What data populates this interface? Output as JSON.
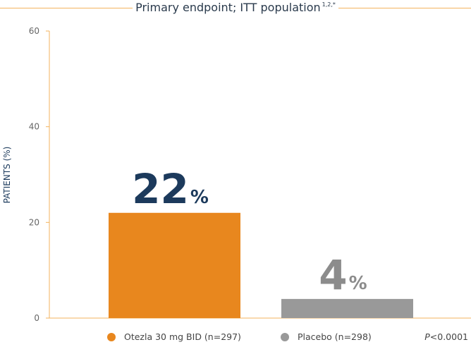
{
  "title": "Primary endpoint; ITT population",
  "title_superscript": "1,2,*",
  "pvalue_italic": "P",
  "pvalue_rest": "<0.0001",
  "colors": {
    "axis": "#f3b35e",
    "otezla": "#e8871e",
    "placebo": "#999999",
    "label_dark": "#1c3a5c",
    "label_grey": "#8c8c8c",
    "tick_text": "#666666"
  },
  "chart_data": {
    "type": "bar",
    "categories": [
      "Otezla 30 mg BID (n=297)",
      "Placebo (n=298)"
    ],
    "values": [
      22,
      4
    ],
    "data_labels": [
      {
        "number": "22",
        "unit": "%"
      },
      {
        "number": "4",
        "unit": "%"
      }
    ],
    "ylabel": "PATIENTS (%)",
    "ylim": [
      0,
      60
    ],
    "yticks": [
      0,
      20,
      40,
      60
    ],
    "grid": false,
    "legend": "bottom"
  },
  "legend": [
    {
      "label": "Otezla 30 mg BID (n=297)",
      "color": "#e8871e"
    },
    {
      "label": "Placebo (n=298)",
      "color": "#999999"
    }
  ]
}
